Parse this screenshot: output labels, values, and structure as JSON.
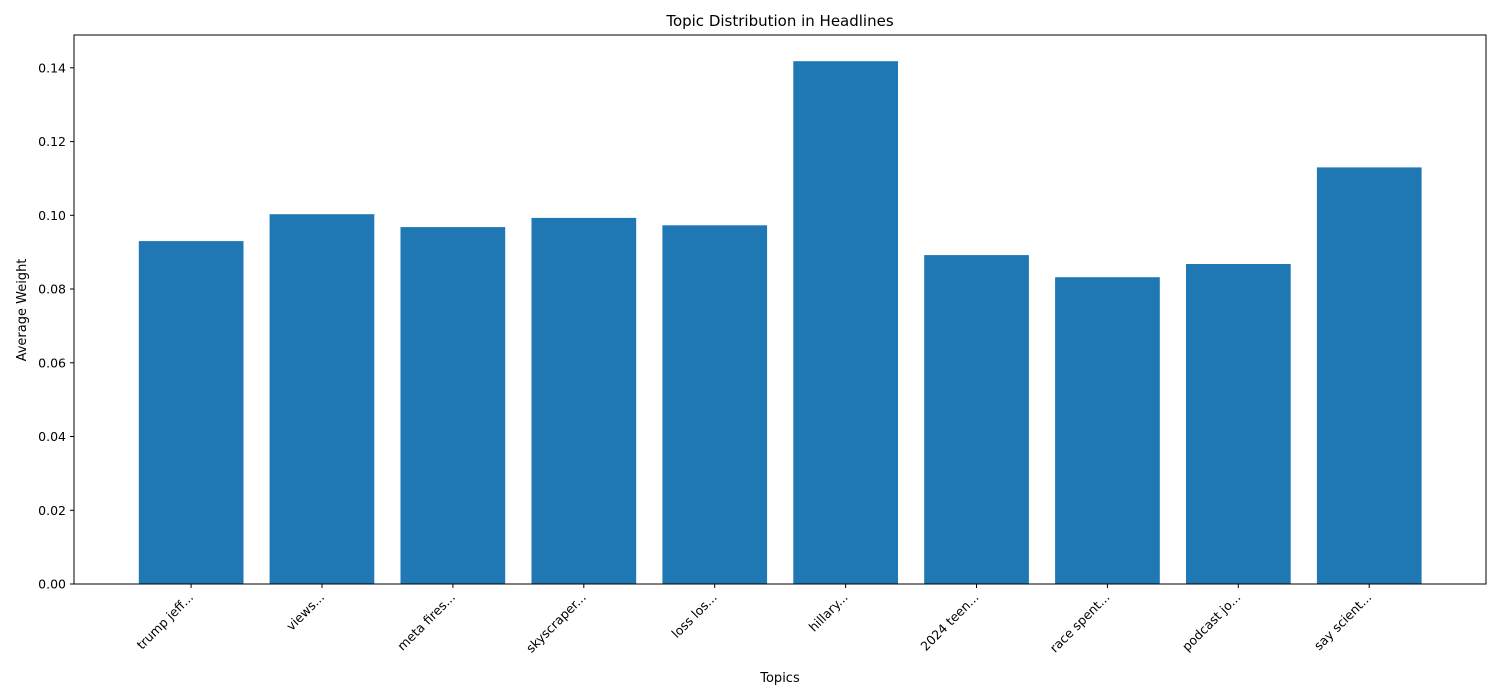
{
  "chart_data": {
    "type": "bar",
    "title": "Topic Distribution in Headlines",
    "xlabel": "Topics",
    "ylabel": "Average Weight",
    "categories": [
      "trump jeff...",
      "views...",
      "meta fires...",
      "skyscraper...",
      "loss los...",
      "hillary...",
      "2024 teen...",
      "race spent...",
      "podcast jo...",
      "say scient..."
    ],
    "values": [
      0.093,
      0.1003,
      0.0968,
      0.0993,
      0.0973,
      0.1418,
      0.0892,
      0.0832,
      0.0868,
      0.113
    ],
    "ylim": [
      0,
      0.1489
    ],
    "yticks": [
      0.0,
      0.02,
      0.04,
      0.06,
      0.08,
      0.1,
      0.12,
      0.14
    ],
    "ytick_labels": [
      "0.00",
      "0.02",
      "0.04",
      "0.06",
      "0.08",
      "0.10",
      "0.12",
      "0.14"
    ],
    "bar_color": "#1f77b4",
    "grid": false
  }
}
